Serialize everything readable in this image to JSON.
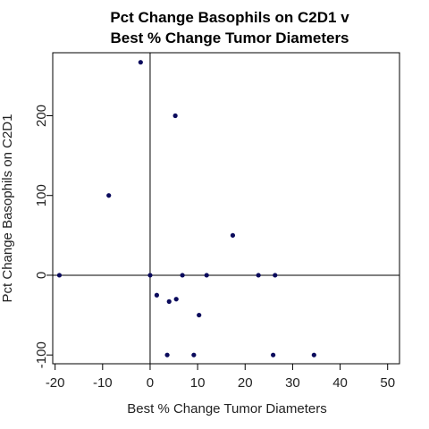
{
  "chart_data": {
    "type": "scatter",
    "title": [
      "Pct Change Basophils on C2D1 v",
      "Best % Change Tumor Diameters"
    ],
    "xlabel": "Best % Change Tumor Diameters",
    "ylabel": "Pct Change Basophils on C2D1",
    "xlim": [
      -20.5,
      52.5
    ],
    "ylim": [
      -111,
      279
    ],
    "xticks": [
      -20,
      -10,
      0,
      10,
      20,
      30,
      40,
      50
    ],
    "yticks": [
      -100,
      0,
      100,
      200
    ],
    "reference_lines": {
      "x": 0,
      "y": 0
    },
    "point_color": "#0a0a5c",
    "points": [
      {
        "x": -2,
        "y": 267
      },
      {
        "x": 5.3,
        "y": 200
      },
      {
        "x": -8.7,
        "y": 100
      },
      {
        "x": 17.4,
        "y": 50
      },
      {
        "x": -19.1,
        "y": 0
      },
      {
        "x": 0,
        "y": 0
      },
      {
        "x": 6.8,
        "y": 0
      },
      {
        "x": 11.9,
        "y": 0
      },
      {
        "x": 22.8,
        "y": 0
      },
      {
        "x": 26.3,
        "y": 0
      },
      {
        "x": 1.4,
        "y": -25
      },
      {
        "x": 5.5,
        "y": -30
      },
      {
        "x": 4,
        "y": -33
      },
      {
        "x": 10.3,
        "y": -50
      },
      {
        "x": 3.6,
        "y": -100
      },
      {
        "x": 9.2,
        "y": -100
      },
      {
        "x": 25.9,
        "y": -100
      },
      {
        "x": 34.5,
        "y": -100
      }
    ]
  }
}
